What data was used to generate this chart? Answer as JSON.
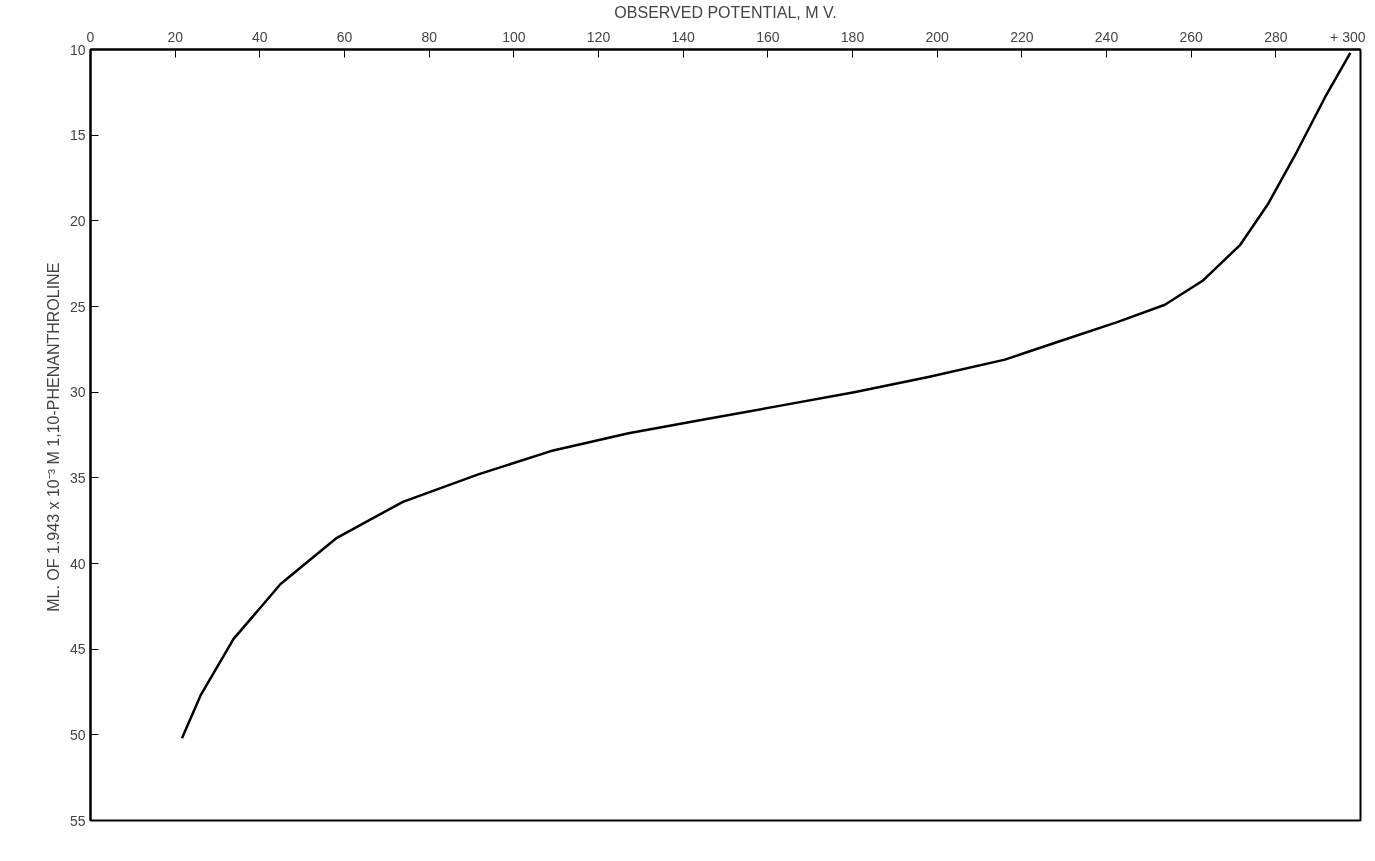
{
  "chart_data": {
    "type": "line",
    "xlabel": "OBSERVED POTENTIAL, M V.",
    "ylabel": "ML. OF 1.943 x 10⁻³ M  1,10-PHENANTHROLINE",
    "x": [
      297.6,
      291.6,
      284.9,
      278.2,
      271.6,
      262.7,
      253.8,
      242.7,
      229.3,
      216,
      198.2,
      180.4,
      162.7,
      144.9,
      127.1,
      109.3,
      91.6,
      73.8,
      58.2,
      44.9,
      33.8,
      26,
      21.6
    ],
    "values": [
      10.2,
      12.8,
      16.0,
      19.0,
      21.4,
      23.5,
      24.9,
      25.9,
      27.0,
      28.1,
      29.1,
      30.0,
      30.8,
      31.6,
      32.4,
      33.4,
      34.8,
      36.4,
      38.5,
      41.2,
      44.4,
      47.7,
      50.2
    ],
    "color": "#000000",
    "marker": "none",
    "line_style": "solid",
    "grid": false,
    "xlim": [
      0,
      300
    ],
    "ylim": [
      55,
      10
    ],
    "xticks": [
      0,
      20,
      40,
      60,
      80,
      100,
      120,
      140,
      160,
      180,
      200,
      220,
      240,
      260,
      280,
      {
        "value": 300,
        "label": "+ 300"
      }
    ],
    "yticks": [
      10,
      15,
      20,
      25,
      30,
      35,
      40,
      45,
      50,
      55
    ]
  }
}
